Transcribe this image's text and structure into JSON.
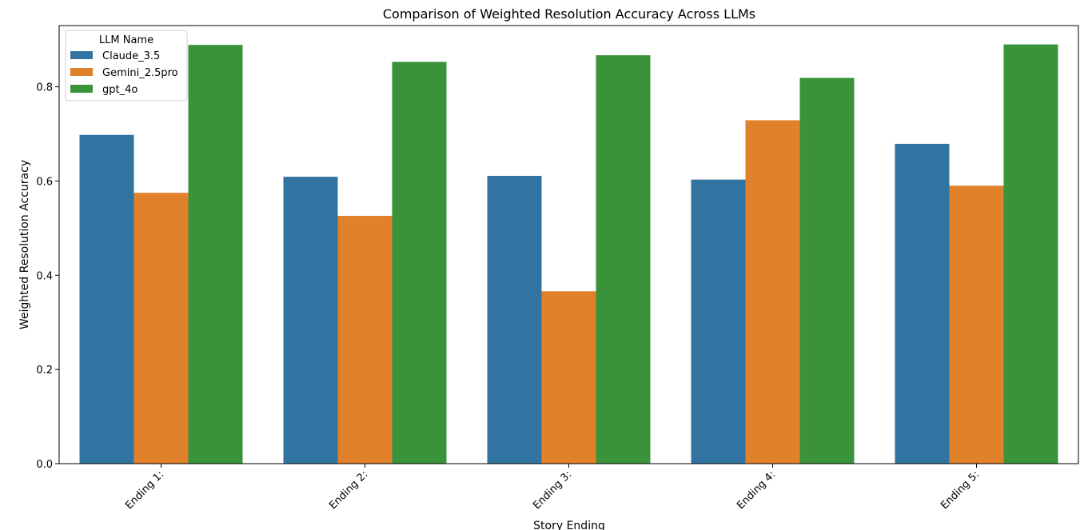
{
  "chart_data": {
    "type": "bar",
    "title": "Comparison of Weighted Resolution Accuracy Across LLMs",
    "xlabel": "Story Ending",
    "ylabel": "Weighted Resolution Accuracy",
    "categories": [
      "Ending 1:",
      "Ending 2:",
      "Ending 3:",
      "Ending 4:",
      "Ending 5:"
    ],
    "series": [
      {
        "name": "Claude_3.5",
        "color": "#3274a1",
        "values": [
          0.698,
          0.609,
          0.611,
          0.603,
          0.679
        ]
      },
      {
        "name": "Gemini_2.5pro",
        "color": "#e1812c",
        "values": [
          0.575,
          0.526,
          0.366,
          0.729,
          0.59
        ]
      },
      {
        "name": "gpt_4o",
        "color": "#3a923a",
        "values": [
          0.889,
          0.853,
          0.867,
          0.819,
          0.89
        ]
      }
    ],
    "ylim": [
      0,
      0.93
    ],
    "yticks": [
      0.0,
      0.2,
      0.4,
      0.6,
      0.8
    ],
    "ytick_labels": [
      "0.0",
      "0.2",
      "0.4",
      "0.6",
      "0.8"
    ],
    "legend": {
      "title": "LLM Name",
      "position": "top-left"
    },
    "grid": false
  }
}
